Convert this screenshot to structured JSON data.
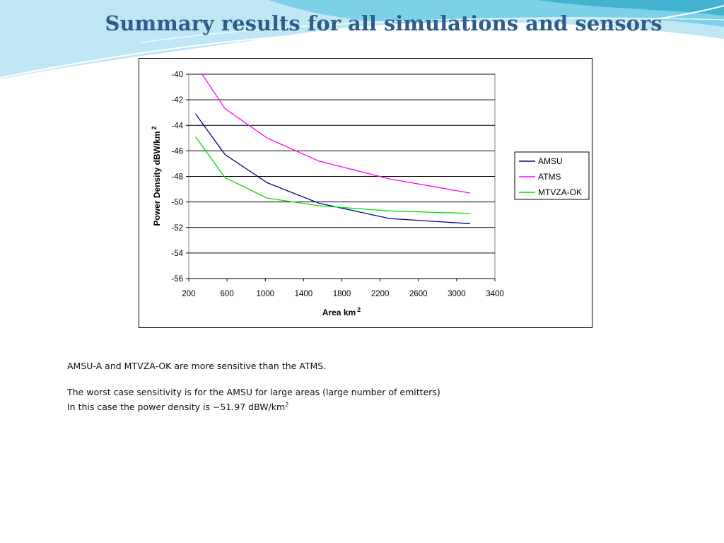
{
  "slide": {
    "title": "Summary results for all simulations and sensors",
    "paragraphs": [
      "AMSU-A and MTVZA-OK are more sensitive than the ATMS.",
      "The worst case sensitivity is for the AMSU for large areas (large number of emitters)",
      "In this case the power density is −51.97 dBW/km"
    ],
    "unit_superscript": "2"
  },
  "colors": {
    "title": "#2e5d8c",
    "deco_light": "#bfe6f3",
    "deco_mid": "#6ccbe4",
    "deco_dark": "#2aa6c8"
  },
  "chart_data": {
    "type": "line",
    "title": "",
    "xlabel": "Area km",
    "xlabel_superscript": "2",
    "ylabel": "Power Density dBW/km",
    "ylabel_superscript": "2",
    "xlim": [
      200,
      3400
    ],
    "ylim": [
      -56,
      -40
    ],
    "xticks": [
      200,
      600,
      1000,
      1400,
      1800,
      2200,
      2600,
      3000,
      3400
    ],
    "yticks": [
      -40,
      -42,
      -44,
      -46,
      -48,
      -50,
      -52,
      -54,
      -56
    ],
    "grid": "horizontal",
    "legend_position": "right",
    "series": [
      {
        "name": "AMSU",
        "color": "#000080",
        "x": [
          270,
          580,
          1020,
          1560,
          2300,
          3140
        ],
        "y": [
          -43.1,
          -46.3,
          -48.5,
          -50.1,
          -51.3,
          -51.7
        ]
      },
      {
        "name": "ATMS",
        "color": "#ff00ff",
        "x": [
          340,
          580,
          1020,
          1560,
          2300,
          3140
        ],
        "y": [
          -40.0,
          -42.7,
          -45.0,
          -46.8,
          -48.2,
          -49.3
        ]
      },
      {
        "name": "MTVZA-OK",
        "color": "#00dd00",
        "x": [
          270,
          580,
          1020,
          1560,
          2300,
          3140
        ],
        "y": [
          -44.9,
          -48.1,
          -49.7,
          -50.3,
          -50.7,
          -50.9
        ]
      }
    ]
  }
}
